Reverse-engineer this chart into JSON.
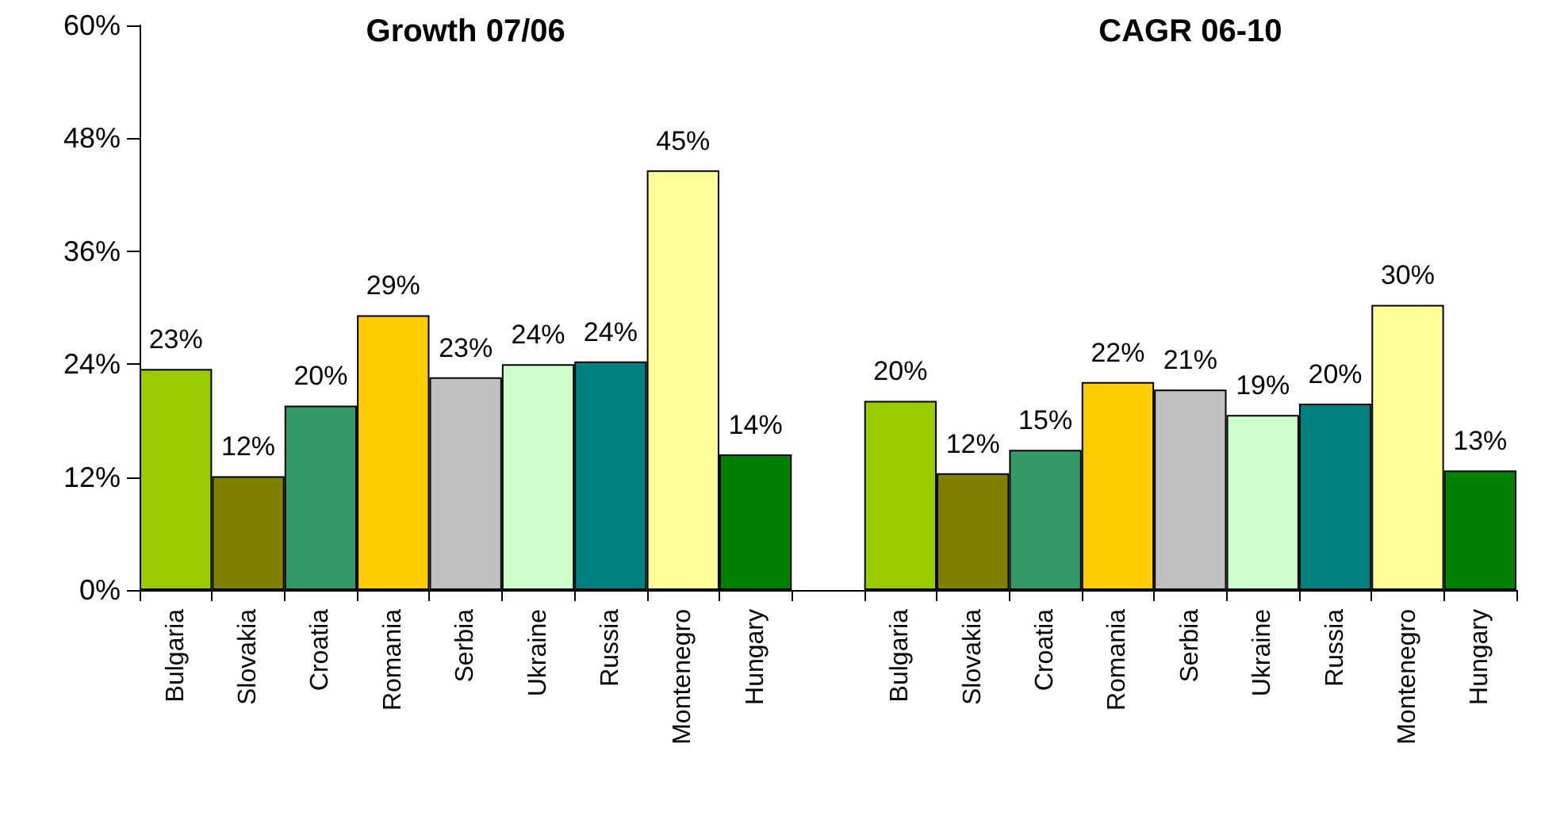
{
  "chart_data": {
    "type": "bar",
    "categories": [
      "Bulgaria",
      "Slovakia",
      "Croatia",
      "Romania",
      "Serbia",
      "Ukraine",
      "Russia",
      "Montenegro",
      "Hungary",
      null,
      "Bulgaria",
      "Slovakia",
      "Croatia",
      "Romania",
      "Serbia",
      "Ukraine",
      "Russia",
      "Montenegro",
      "Hungary"
    ],
    "values": [
      23.5,
      12.1,
      19.6,
      29.2,
      22.6,
      24.0,
      24.3,
      44.6,
      14.4,
      null,
      20.1,
      12.4,
      14.9,
      22.1,
      21.3,
      18.6,
      19.8,
      30.3,
      12.7
    ],
    "value_labels": [
      "23%",
      "12%",
      "20%",
      "29%",
      "23%",
      "24%",
      "24%",
      "45%",
      "14%",
      null,
      "20%",
      "12%",
      "15%",
      "22%",
      "21%",
      "19%",
      "20%",
      "30%",
      "13%"
    ],
    "colors": [
      "#99cc00",
      "#808000",
      "#339966",
      "#ffcc00",
      "#c0c0c0",
      "#ccffcc",
      "#008080",
      "#ffff99",
      "#008000",
      null,
      "#99cc00",
      "#808000",
      "#339966",
      "#ffcc00",
      "#c0c0c0",
      "#ccffcc",
      "#008080",
      "#ffff99",
      "#008000"
    ],
    "ylim": [
      0,
      60
    ],
    "yticks": [
      {
        "value": 0,
        "label": "0%"
      },
      {
        "value": 12,
        "label": "12%"
      },
      {
        "value": 24,
        "label": "24%"
      },
      {
        "value": 36,
        "label": "36%"
      },
      {
        "value": 48,
        "label": "48%"
      },
      {
        "value": 60,
        "label": "60%"
      }
    ],
    "annotations": [
      "Growth 07/06",
      "CAGR 06-10"
    ],
    "grid": false
  }
}
